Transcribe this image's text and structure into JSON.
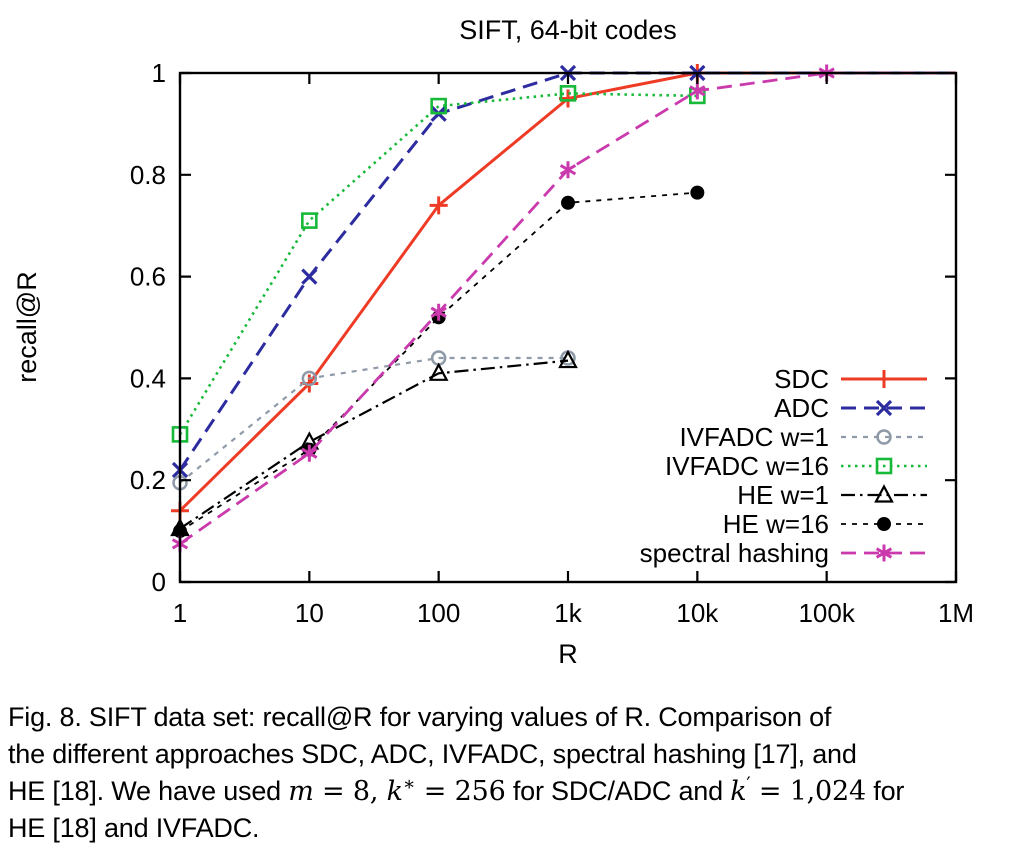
{
  "title": "SIFT, 64-bit codes",
  "axes": {
    "xlabel": "R",
    "ylabel": "recall@R",
    "x_tick_labels": [
      "1",
      "10",
      "100",
      "1k",
      "10k",
      "100k",
      "1M"
    ],
    "y_tick_labels": [
      "0",
      "0.2",
      "0.4",
      "0.6",
      "0.8",
      "1"
    ]
  },
  "chart_data": {
    "type": "line",
    "title": "SIFT, 64-bit codes",
    "xlabel": "R",
    "ylabel": "recall@R",
    "x_scale": "log10",
    "xlim": [
      1,
      1000000
    ],
    "ylim": [
      0,
      1
    ],
    "grid": false,
    "legend_position": "inside bottom-right",
    "series": [
      {
        "name": "SDC",
        "color": "#ee3b26",
        "line": "solid",
        "lw": 3,
        "marker": "plus",
        "x": [
          1,
          10,
          100,
          1000,
          10000
        ],
        "y": [
          0.14,
          0.39,
          0.74,
          0.95,
          1.0
        ],
        "extend_to_x": 1000000
      },
      {
        "name": "ADC",
        "color": "#2c2ca0",
        "line": "dash",
        "lw": 3,
        "marker": "cross",
        "x": [
          1,
          10,
          100,
          1000,
          10000
        ],
        "y": [
          0.22,
          0.6,
          0.92,
          1.0,
          1.0
        ],
        "extend_to_x": 1000000
      },
      {
        "name": "IVFADC w=1",
        "color": "#8f9aa8",
        "line": "dash-small",
        "lw": 2.2,
        "marker": "circle-open",
        "x": [
          1,
          10,
          100,
          1000
        ],
        "y": [
          0.195,
          0.4,
          0.44,
          0.44
        ]
      },
      {
        "name": "IVFADC w=16",
        "color": "#17b939",
        "line": "dot",
        "lw": 2.6,
        "marker": "square-open",
        "x": [
          1,
          10,
          100,
          1000,
          10000
        ],
        "y": [
          0.29,
          0.71,
          0.935,
          0.96,
          0.955
        ]
      },
      {
        "name": "HE w=1",
        "color": "#000000",
        "line": "dash-dot",
        "lw": 2.2,
        "marker": "triangle-open",
        "x": [
          1,
          10,
          100,
          1000
        ],
        "y": [
          0.105,
          0.275,
          0.41,
          0.435
        ]
      },
      {
        "name": "HE w=16",
        "color": "#000000",
        "line": "dash-small",
        "lw": 1.8,
        "marker": "circle-filled",
        "x": [
          1,
          10,
          100,
          1000,
          10000
        ],
        "y": [
          0.1,
          0.26,
          0.52,
          0.745,
          0.765
        ]
      },
      {
        "name": "spectral hashing",
        "color": "#ca3aad",
        "line": "dash",
        "lw": 2.8,
        "marker": "asterisk",
        "x": [
          1,
          10,
          100,
          1000,
          10000,
          100000
        ],
        "y": [
          0.075,
          0.253,
          0.53,
          0.81,
          0.965,
          1.0
        ],
        "extend_to_x": 1000000
      }
    ]
  },
  "caption": {
    "lines": [
      [
        {
          "t": "Fig. 8. SIFT data set: recall@R for varying values of R. Comparison of"
        }
      ],
      [
        {
          "t": "the different approaches SDC, ADC, IVFADC, spectral hashing [17], and"
        }
      ],
      [
        {
          "t": "HE [18]. We have used "
        },
        {
          "t": "m",
          "st": "mi"
        },
        {
          "t": " = 8, ",
          "st": "mr"
        },
        {
          "t": "k",
          "st": "mi"
        },
        {
          "t": "∗",
          "st": "msup"
        },
        {
          "t": " = 256",
          "st": "mr"
        },
        {
          "t": " for SDC/ADC and "
        },
        {
          "t": "k",
          "st": "mi"
        },
        {
          "t": "′",
          "st": "msup"
        },
        {
          "t": " = 1,024",
          "st": "mr"
        },
        {
          "t": " for"
        }
      ],
      [
        {
          "t": "HE [18] and IVFADC."
        }
      ]
    ]
  }
}
